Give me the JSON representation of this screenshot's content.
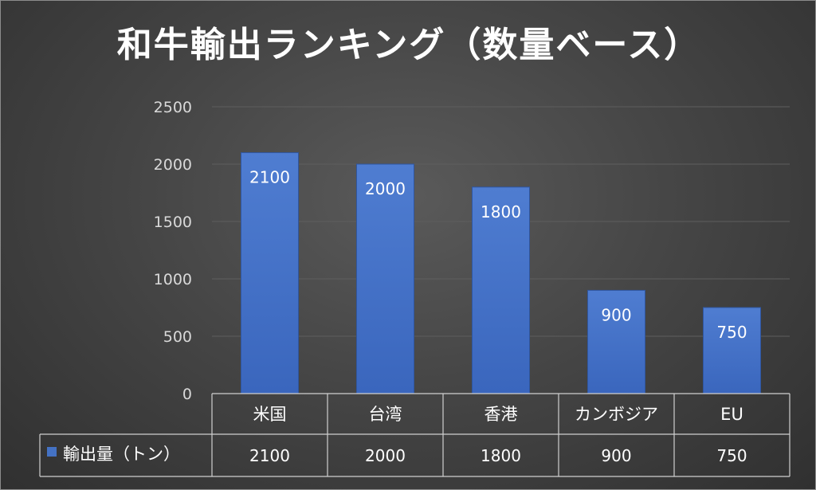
{
  "chart_data": {
    "type": "bar",
    "title": "和牛輸出ランキング（数量ベース）",
    "categories": [
      "米国",
      "台湾",
      "香港",
      "カンボジア",
      "EU"
    ],
    "series": [
      {
        "name": "輸出量（トン）",
        "values": [
          2100,
          2000,
          1800,
          900,
          750
        ]
      }
    ],
    "data_labels": [
      "2100",
      "2000",
      "1800",
      "900",
      "750"
    ],
    "ylim": [
      0,
      2500
    ],
    "y_ticks": [
      "0",
      "500",
      "1000",
      "1500",
      "2000",
      "2500"
    ],
    "grid": true,
    "data_table": true,
    "colors": {
      "bar": "#4472c4",
      "gridline": "#5e5e5e",
      "text": "#ffffff",
      "tick_text": "#d9d9d9"
    }
  }
}
